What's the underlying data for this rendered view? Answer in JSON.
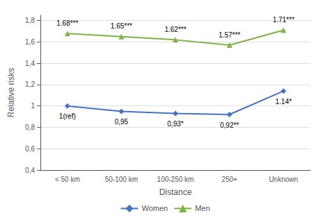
{
  "chart_data": {
    "type": "line",
    "categories": [
      "< 50 km",
      "50-100 km",
      "100-250 km",
      "250+",
      "Unknown"
    ],
    "series": [
      {
        "name": "Women",
        "color": "#4472C4",
        "marker": "D",
        "values": [
          1.0,
          0.95,
          0.93,
          0.92,
          1.14
        ],
        "value_labels": [
          "1(ref)",
          "0,95",
          "0,93*",
          "0,92**",
          "1.14*"
        ]
      },
      {
        "name": "Men",
        "color": "#7CB342",
        "marker": "^",
        "values": [
          1.68,
          1.65,
          1.62,
          1.57,
          1.71
        ],
        "value_labels": [
          "1.68***",
          "1.65***",
          "1.62***",
          "1.57***",
          "1.71***"
        ]
      }
    ],
    "xlabel": "Distance",
    "ylabel": "Relative risks",
    "ylim": [
      0.4,
      1.85
    ],
    "yticks": [
      {
        "value": 0.4,
        "label": "0,4"
      },
      {
        "value": 0.6,
        "label": "0,6"
      },
      {
        "value": 0.8,
        "label": "0,8"
      },
      1,
      {
        "value": 1.2,
        "label": "1,2"
      },
      {
        "value": 1.4,
        "label": "1,4"
      },
      {
        "value": 1.6,
        "label": "1,6"
      },
      {
        "value": 1.8,
        "label": "1,8"
      }
    ],
    "grid": true,
    "legend": "bottom",
    "data_labels": true
  }
}
